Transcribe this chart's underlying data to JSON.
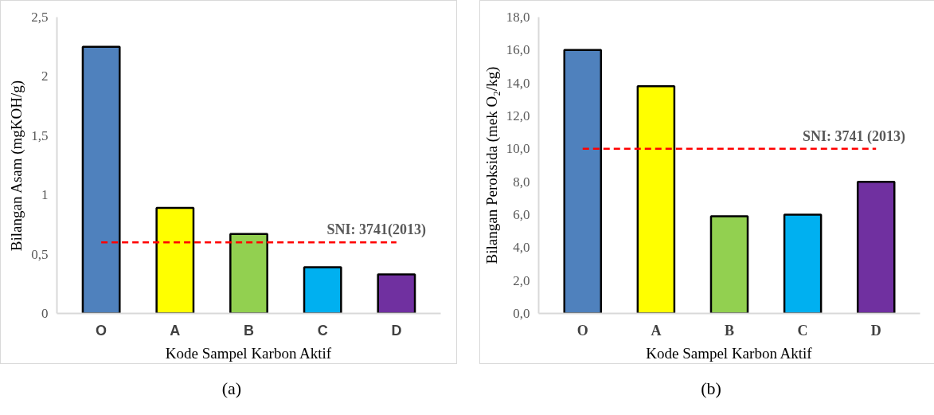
{
  "chart_data": [
    {
      "type": "bar",
      "categories": [
        "O",
        "A",
        "B",
        "C",
        "D"
      ],
      "values": [
        2.25,
        0.89,
        0.67,
        0.39,
        0.33
      ],
      "colors": [
        "#4f81bd",
        "#ffff00",
        "#92d050",
        "#00b0f0",
        "#7030a0"
      ],
      "xlabel": "Kode Sampel Karbon Aktif",
      "ylabel": "Bilangan Asam (mgKOH/g)",
      "ylim": [
        0,
        2.5
      ],
      "yticks": [
        0,
        {
          "value": 0.5,
          "label": "0,5"
        },
        1,
        {
          "value": 1.5,
          "label": "1,5"
        },
        2,
        {
          "value": 2.5,
          "label": "2,5"
        }
      ],
      "grid": false,
      "ref_lines": [
        {
          "axis": "y",
          "value": 0.6,
          "color": "#ff0000",
          "line_style": "dashed"
        }
      ],
      "annotations": [
        {
          "text": "SNI: 3741(2013)",
          "x": "D",
          "y": 0.6
        },
        "(a)"
      ]
    },
    {
      "type": "bar",
      "categories": [
        "O",
        "A",
        "B",
        "C",
        "D"
      ],
      "values": [
        16.0,
        13.8,
        5.9,
        6.0,
        8.0
      ],
      "colors": [
        "#4f81bd",
        "#ffff00",
        "#92d050",
        "#00b0f0",
        "#7030a0"
      ],
      "xlabel": "Kode Sampel Karbon Aktif",
      "ylabel": "Bilangan Peroksida (mek O₂/kg)",
      "ylim": [
        0,
        18
      ],
      "yticks": [
        {
          "value": 0,
          "label": "0,0"
        },
        {
          "value": 2,
          "label": "2,0"
        },
        {
          "value": 4,
          "label": "4,0"
        },
        {
          "value": 6,
          "label": "6,0"
        },
        {
          "value": 8,
          "label": "8,0"
        },
        {
          "value": 10,
          "label": "10,0"
        },
        {
          "value": 12,
          "label": "12,0"
        },
        {
          "value": 14,
          "label": "14,0"
        },
        {
          "value": 16,
          "label": "16,0"
        },
        {
          "value": 18,
          "label": "18,0"
        }
      ],
      "grid": false,
      "ref_lines": [
        {
          "axis": "y",
          "value": 10.0,
          "color": "#ff0000",
          "line_style": "dashed"
        }
      ],
      "annotations": [
        {
          "text": "SNI: 3741 (2013)",
          "x": "D",
          "y": 10.0
        },
        "(b)"
      ]
    }
  ]
}
